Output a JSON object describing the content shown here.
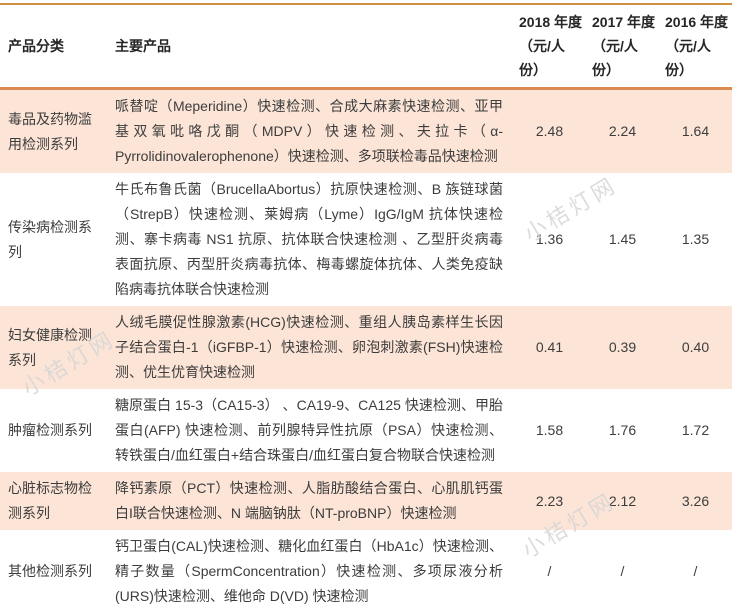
{
  "page": {
    "watermark": "小桔灯网"
  },
  "colors": {
    "border_top": "#cf9040",
    "border_header": "#dc8a4e",
    "border_bottom": "#c08a3e",
    "row_shade": "#fce4d6",
    "text": "#3d3d3d",
    "watermark": "#d6d6d6"
  },
  "table": {
    "headers": {
      "category": "产品分类",
      "products": "主要产品",
      "years": [
        "2018 年度（元/人份）",
        "2017 年度（元/人份）",
        "2016 年度（元/人份）"
      ]
    },
    "rows": [
      {
        "category": "毒品及药物滥用检测系列",
        "products": "哌替啶（Meperidine）快速检测、合成大麻素快速检测、亚甲基双氧吡咯戊酮（MDPV）快速检测、夫拉卡（α-Pyrrolidinovalerophenone）快速检测、多项联检毒品快速检测",
        "values": [
          "2.48",
          "2.24",
          "1.64"
        ],
        "shaded": true
      },
      {
        "category": "传染病检测系列",
        "products": "牛氏布鲁氏菌（BrucellaAbortus）抗原快速检测、B 族链球菌（StrepB）快速检测、莱姆病（Lyme）IgG/IgM 抗体快速检测、寨卡病毒 NS1 抗原、抗体联合快速检测 、乙型肝炎病毒表面抗原、丙型肝炎病毒抗体、梅毒螺旋体抗体、人类免疫缺陷病毒抗体联合快速检测",
        "values": [
          "1.36",
          "1.45",
          "1.35"
        ],
        "shaded": false
      },
      {
        "category": "妇女健康检测系列",
        "products": "人绒毛膜促性腺激素(HCG)快速检测、重组人胰岛素样生长因子结合蛋白-1（iGFBP-1）快速检测、卵泡刺激素(FSH)快速检测、优生优育快速检测",
        "values": [
          "0.41",
          "0.39",
          "0.40"
        ],
        "shaded": true
      },
      {
        "category": "肿瘤检测系列",
        "products": "糖原蛋白 15-3（CA15-3） 、CA19-9、CA125 快速检测、甲胎蛋白(AFP) 快速检测、前列腺特异性抗原（PSA）快速检测、转铁蛋白/血红蛋白+结合珠蛋白/血红蛋白复合物联合快速检测",
        "values": [
          "1.58",
          "1.76",
          "1.72"
        ],
        "shaded": false
      },
      {
        "category": "心脏标志物检测系列",
        "products": "降钙素原（PCT）快速检测、人脂肪酸结合蛋白、心肌肌钙蛋白I联合快速检测、N 端脑钠肽（NT-proBNP）快速检测",
        "values": [
          "2.23",
          "2.12",
          "3.26"
        ],
        "shaded": true
      },
      {
        "category": "其他检测系列",
        "products": "钙卫蛋白(CAL)快速检测、糖化血红蛋白（HbA1c）快速检测、精子数量（SpermConcentration）快速检测、多项尿液分析(URS)快速检测、维他命 D(VD) 快速检测",
        "values": [
          "/",
          "/",
          "/"
        ],
        "shaded": false
      }
    ]
  }
}
